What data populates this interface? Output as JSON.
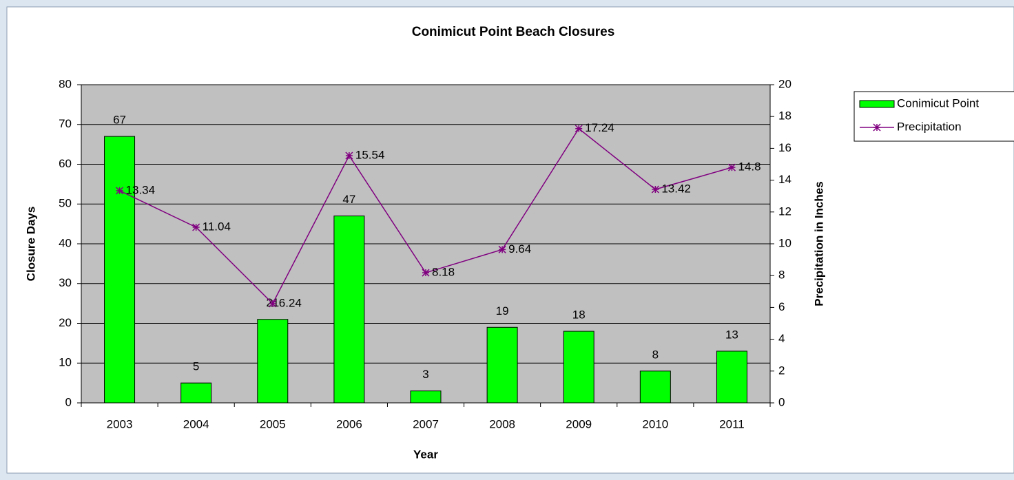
{
  "chart_data": {
    "type": "bar",
    "title": "Conimicut Point Beach Closures",
    "x_label": "Year",
    "y_label": "Closure Days",
    "y2_label": "Precipitation in Inches",
    "categories": [
      "2003",
      "2004",
      "2005",
      "2006",
      "2007",
      "2008",
      "2009",
      "2010",
      "2011"
    ],
    "series": [
      {
        "name": "Conimicut Point",
        "type": "bar",
        "color": "#00ff00",
        "values": [
          67,
          5,
          21,
          47,
          3,
          19,
          18,
          8,
          13
        ]
      },
      {
        "name": "Precipitation",
        "type": "line",
        "axis": "y2",
        "color": "#800080",
        "values": [
          13.34,
          11.04,
          6.24,
          15.54,
          8.18,
          9.64,
          17.24,
          13.42,
          14.8
        ]
      }
    ],
    "ylim": [
      0,
      80
    ],
    "yticks": [
      0,
      10,
      20,
      30,
      40,
      50,
      60,
      70,
      80
    ],
    "y2lim": [
      0,
      20
    ],
    "y2ticks": [
      0,
      2,
      4,
      6,
      8,
      10,
      12,
      14,
      16,
      18,
      20
    ],
    "grid": true,
    "plot_background": "#c0c0c0"
  }
}
